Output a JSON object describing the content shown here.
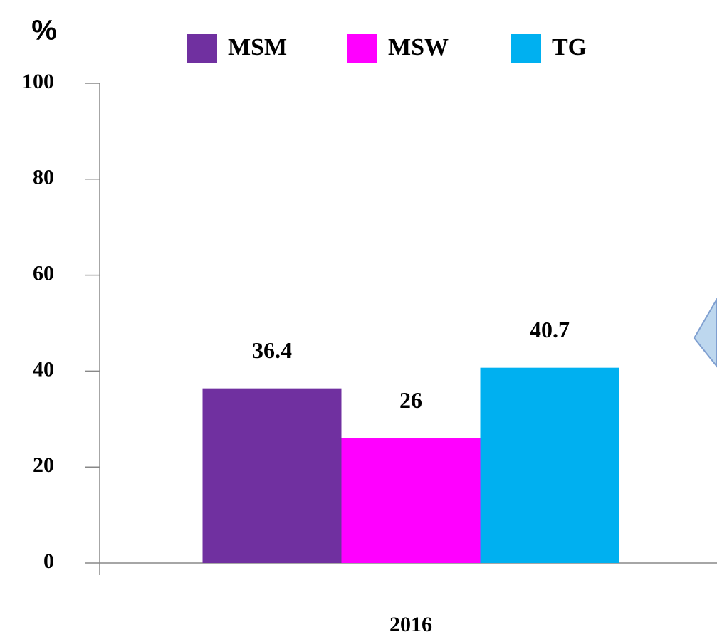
{
  "chart_data": {
    "type": "bar",
    "y_label": "%",
    "categories": [
      "2016"
    ],
    "series": [
      {
        "name": "MSM",
        "color": "#7030a0",
        "values": [
          36.4
        ]
      },
      {
        "name": "MSW",
        "color": "#ff00ff",
        "values": [
          26
        ]
      },
      {
        "name": "TG",
        "color": "#00b0f0",
        "values": [
          40.7
        ]
      }
    ],
    "ylim": [
      0,
      100
    ],
    "yticks": [
      0,
      20,
      40,
      60,
      80,
      100
    ],
    "grid": false,
    "legend": "top"
  }
}
